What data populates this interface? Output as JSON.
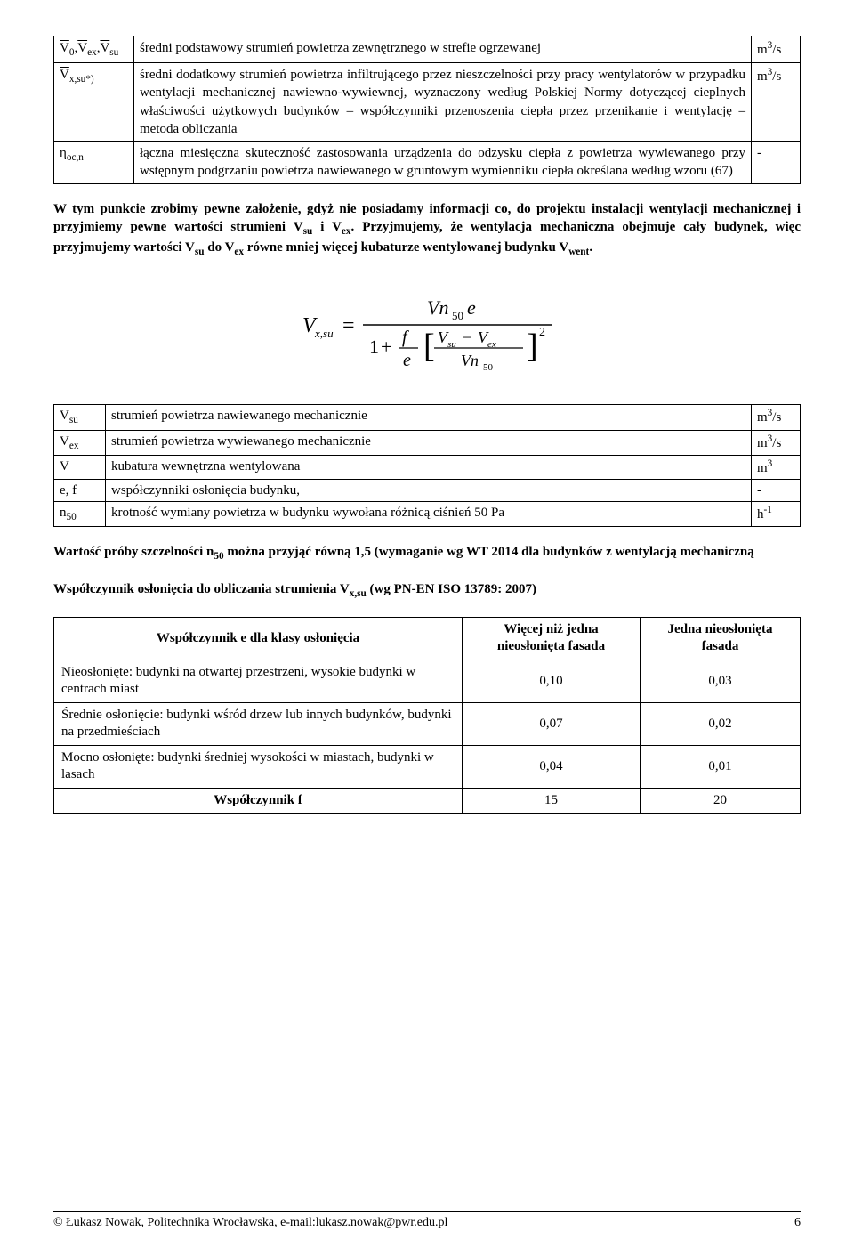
{
  "def_table": {
    "rows": [
      {
        "symbol_html": "<span class=\"bar\">V</span><span class=\"sub\">0</span>,<span class=\"bar\">V</span><span class=\"sub\">ex</span>,<span class=\"bar\">V</span><span class=\"sub\">su</span>",
        "text": "średni podstawowy strumień powietrza zewnętrznego w strefie ogrzewanej",
        "unit_html": "m<span class=\"sup\">3</span>/s"
      },
      {
        "symbol_html": "<span class=\"bar\">V</span><span class=\"sub\">x,su*)</span>",
        "text": "średni dodatkowy strumień powietrza infiltrującego przez nieszczelności przy pracy wentylatorów w przypadku  wentylacji mechanicznej nawiewno-wywiewnej, wyznaczony według Polskiej Normy dotyczącej cieplnych właściwości użytkowych budynków – współczynniki przenoszenia ciepła przez przenikanie i wentylację – metoda obliczania",
        "unit_html": "m<span class=\"sup\">3</span>/s"
      },
      {
        "symbol_html": "η<span class=\"sub\">oc,n</span>",
        "text": "łączna miesięczna skuteczność zastosowania urządzenia do odzysku ciepła z powietrza wywiewanego przy wstępnym podgrzaniu powietrza nawiewanego w gruntowym wymienniku ciepła określana według wzoru (67)",
        "unit_html": "-"
      }
    ]
  },
  "para1": "W tym punkcie zrobimy pewne założenie, gdyż nie posiadamy informacji co, do projektu instalacji wentylacji mechanicznej i przyjmiemy pewne wartości strumieni V",
  "para1_sub1": "su",
  "para1_mid": " i V",
  "para1_sub2": "ex",
  "para1_tail": ". Przyjmujemy, że wentylacja mechaniczna obejmuje cały budynek, więc przyjmujemy wartości V",
  "para1_sub3": "su",
  "para1_tail2": " do V",
  "para1_sub4": "ex",
  "para1_tail3": " równe mniej więcej kubaturze wentylowanej budynku V",
  "para1_sub5": "went",
  "para1_end": ".",
  "vars_table": {
    "rows": [
      {
        "symbol_html": "V<span class=\"sub\">su</span>",
        "text": "strumień powietrza nawiewanego mechanicznie",
        "unit_html": "m<span class=\"sup\">3</span>/s"
      },
      {
        "symbol_html": "V<span class=\"sub\">ex</span>",
        "text": "strumień powietrza wywiewanego mechanicznie",
        "unit_html": "m<span class=\"sup\">3</span>/s"
      },
      {
        "symbol_html": "V",
        "text": "kubatura wewnętrzna wentylowana",
        "unit_html": "m<span class=\"sup\">3</span>"
      },
      {
        "symbol_html": "e, f",
        "text": "współczynniki osłonięcia budynku,",
        "unit_html": "-"
      },
      {
        "symbol_html": "n<span class=\"sub\">50</span>",
        "text": "krotność wymiany powietrza w budynku wywołana różnicą ciśnień 50 Pa",
        "unit_html": "h<span class=\"sup\">-1</span>"
      }
    ]
  },
  "para2_a": "Wartość próby szczelności n",
  "para2_sub": "50",
  "para2_b": " można przyjąć równą 1,5 (wymaganie wg WT 2014 dla budynków z wentylacją mechaniczną",
  "para3_a": "Współczynnik osłonięcia do obliczania strumienia V",
  "para3_sub": "x,su",
  "para3_b": " (wg PN-EN ISO 13789: 2007)",
  "coef_table": {
    "headers": [
      "Współczynnik e dla klasy osłonięcia",
      "Więcej niż jedna nieosłonięta fasada",
      "Jedna nieosłonięta fasada"
    ],
    "rows": [
      {
        "label": "Nieosłonięte: budynki na otwartej przestrzeni, wysokie budynki w centrach miast",
        "v1": "0,10",
        "v2": "0,03"
      },
      {
        "label": "Średnie osłonięcie: budynki wśród drzew lub innych budynków, budynki na przedmieściach",
        "v1": "0,07",
        "v2": "0,02"
      },
      {
        "label": "Mocno osłonięte: budynki średniej wysokości w miastach, budynki w lasach",
        "v1": "0,04",
        "v2": "0,01"
      }
    ],
    "f_row": {
      "label": "Współczynnik f",
      "v1": "15",
      "v2": "20"
    }
  },
  "footer_text": "© Łukasz Nowak, Politechnika Wrocławska, e-mail:lukasz.nowak@pwr.edu.pl",
  "page_num": "6",
  "formula": {
    "lhs_v": "V",
    "lhs_sub": "x,su",
    "eq": "=",
    "num_vn": "Vn",
    "num_50": "50",
    "num_e": "e",
    "den_1plus": "1",
    "den_plus": "+",
    "den_f": "f",
    "den_e": "e",
    "br_vsu_v": "V",
    "br_vsu_sub": "su",
    "br_minus": "−",
    "br_vex_v": "V",
    "br_vex_sub": "ex",
    "br_vn": "Vn",
    "br_50": "50",
    "exp2": "2"
  }
}
